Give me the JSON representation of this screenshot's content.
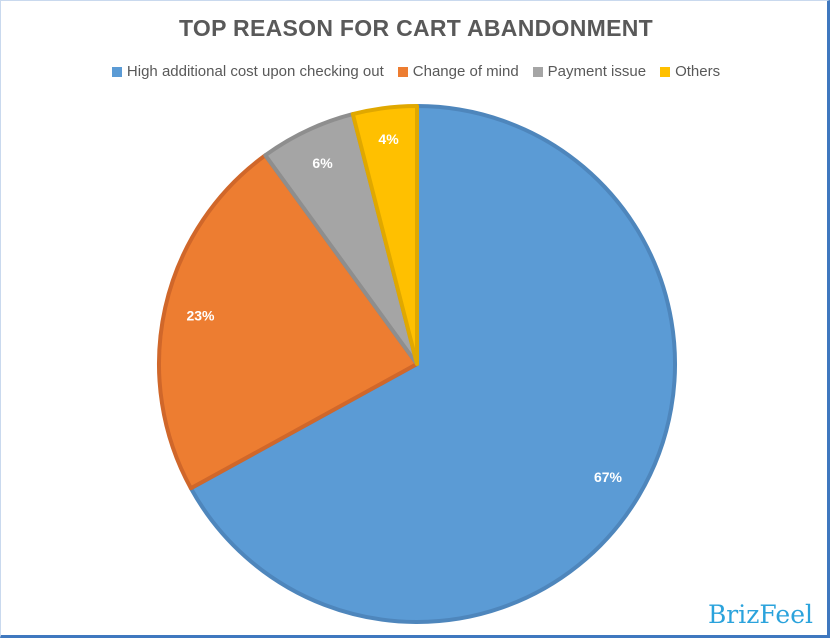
{
  "chart_data": {
    "type": "pie",
    "title": "TOP REASON FOR CART ABANDONMENT",
    "legend_position": "top",
    "slices": [
      {
        "label": "High additional cost upon checking out",
        "value": 67,
        "data_label": "67%",
        "color": "#5B9BD5",
        "stroke": "#4E86BC"
      },
      {
        "label": "Change of mind",
        "value": 23,
        "data_label": "23%",
        "color": "#ED7D31",
        "stroke": "#D0672A"
      },
      {
        "label": "Payment issue",
        "value": 6,
        "data_label": "6%",
        "color": "#A5A5A5",
        "stroke": "#8E8E8E"
      },
      {
        "label": "Others",
        "value": 4,
        "data_label": "4%",
        "color": "#FFC000",
        "stroke": "#E0A800"
      }
    ]
  },
  "watermark": "BrizFeel"
}
